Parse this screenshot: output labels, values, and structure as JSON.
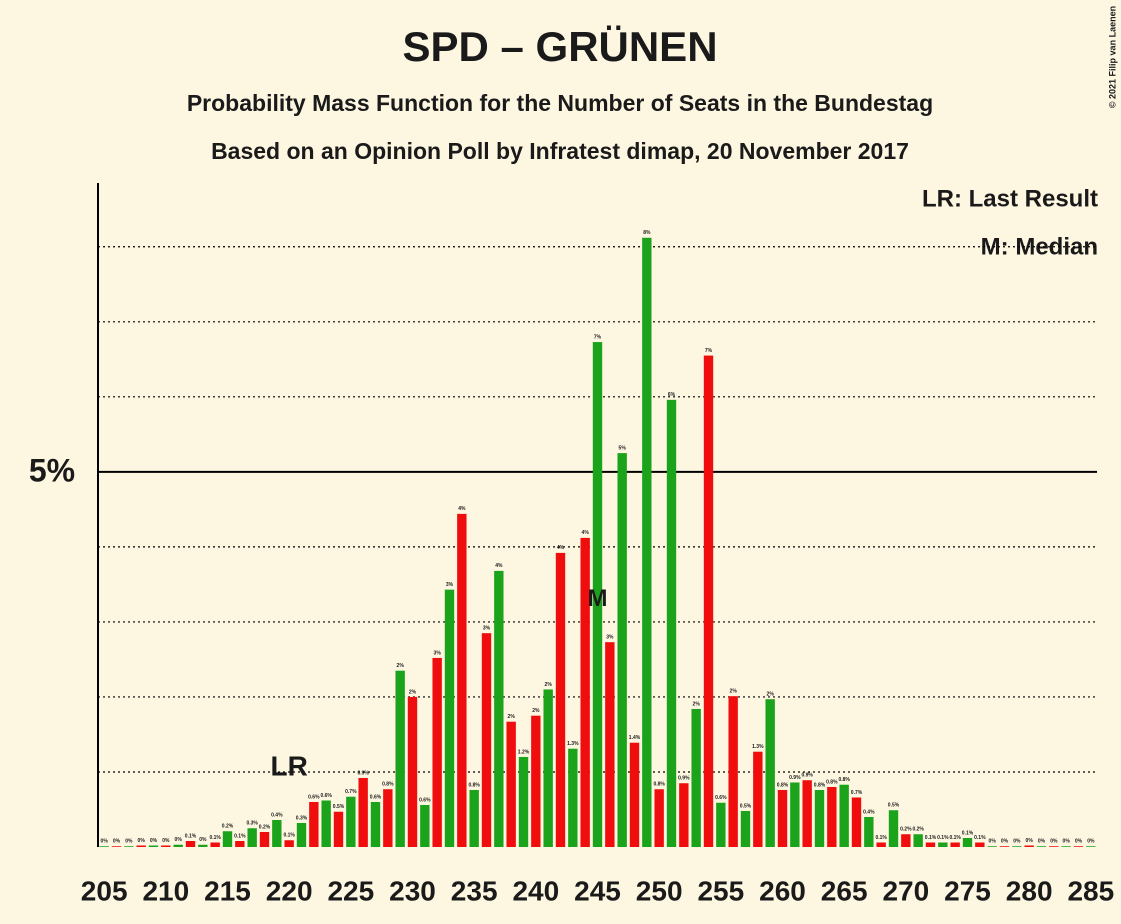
{
  "chart_data": {
    "type": "bar",
    "title": "SPD – GRÜNEN",
    "subtitle": "Probability Mass Function for the Number of Seats in the Bundestag",
    "subtitle2": "Based on an Opinion Poll by Infratest dimap, 20 November 2017",
    "copyright": "© 2021 Filip van Laenen",
    "legend_notes": [
      "LR: Last Result",
      "M: Median"
    ],
    "annotations": [
      {
        "text": "LR",
        "x": 220
      },
      {
        "text": "M",
        "x": 245
      }
    ],
    "colors": [
      "#1ca31c",
      "#f00d0d"
    ],
    "x": [
      205,
      206,
      207,
      208,
      209,
      210,
      211,
      212,
      213,
      214,
      215,
      216,
      217,
      218,
      219,
      220,
      221,
      222,
      223,
      224,
      225,
      226,
      227,
      228,
      229,
      230,
      231,
      232,
      233,
      234,
      235,
      236,
      237,
      238,
      239,
      240,
      241,
      242,
      243,
      244,
      245,
      246,
      247,
      248,
      249,
      250,
      251,
      252,
      253,
      254,
      255,
      256,
      257,
      258,
      259,
      260,
      261,
      262,
      263,
      264,
      265,
      266,
      267,
      268,
      269,
      270,
      271,
      272,
      273,
      274,
      275,
      276,
      277,
      278,
      279,
      280,
      281,
      282,
      283,
      284,
      285
    ],
    "values": [
      0.01,
      0.01,
      0.01,
      0.02,
      0.02,
      0.02,
      0.03,
      0.08,
      0.03,
      0.06,
      0.21,
      0.08,
      0.25,
      0.2,
      0.36,
      0.09,
      0.32,
      0.6,
      0.62,
      0.47,
      0.67,
      0.92,
      0.6,
      0.77,
      2.35,
      2.0,
      0.56,
      2.52,
      3.43,
      4.44,
      0.76,
      2.85,
      3.68,
      1.67,
      1.2,
      1.75,
      2.1,
      3.92,
      1.31,
      4.12,
      6.73,
      2.73,
      5.25,
      1.39,
      8.12,
      0.77,
      5.96,
      0.85,
      1.84,
      6.55,
      0.59,
      2.01,
      0.48,
      1.27,
      1.97,
      0.76,
      0.86,
      0.89,
      0.76,
      0.8,
      0.83,
      0.66,
      0.4,
      0.06,
      0.49,
      0.17,
      0.17,
      0.06,
      0.06,
      0.06,
      0.12,
      0.06,
      0.01,
      0.01,
      0.01,
      0.02,
      0.01,
      0.01,
      0.01,
      0.01,
      0.01
    ],
    "value_labels": [
      "0%",
      "0%",
      "0%",
      "0%",
      "0%",
      "0%",
      "0%",
      "0.1%",
      "0%",
      "0.1%",
      "0.2%",
      "0.1%",
      "0.3%",
      "0.2%",
      "0.4%",
      "0.1%",
      "0.3%",
      "0.6%",
      "0.6%",
      "0.5%",
      "0.7%",
      "0.9%",
      "0.6%",
      "0.8%",
      "2%",
      "2%",
      "0.6%",
      "3%",
      "3%",
      "4%",
      "0.8%",
      "3%",
      "4%",
      "2%",
      "1.2%",
      "2%",
      "2%",
      "4%",
      "1.3%",
      "4%",
      "7%",
      "3%",
      "5%",
      "1.4%",
      "8%",
      "0.8%",
      "6%",
      "0.9%",
      "2%",
      "7%",
      "0.6%",
      "2%",
      "0.5%",
      "1.3%",
      "2%",
      "0.8%",
      "0.9%",
      "0.9%",
      "0.8%",
      "0.8%",
      "0.8%",
      "0.7%",
      "0.4%",
      "0.1%",
      "0.5%",
      "0.2%",
      "0.2%",
      "0.1%",
      "0.1%",
      "0.1%",
      "0.1%",
      "0.1%",
      "0%",
      "0%",
      "0%",
      "0%",
      "0%",
      "0%",
      "0%",
      "0%",
      "0%"
    ],
    "xlim": [
      204.5,
      285.5
    ],
    "xticks": [
      205,
      210,
      215,
      220,
      225,
      230,
      235,
      240,
      245,
      250,
      255,
      260,
      265,
      270,
      275,
      280,
      285
    ],
    "ylim": [
      0,
      8.85
    ],
    "yticks": [
      {
        "value": 5,
        "label": "5%"
      }
    ],
    "gridlines": [
      1,
      2,
      3,
      4,
      6,
      7,
      8
    ]
  }
}
